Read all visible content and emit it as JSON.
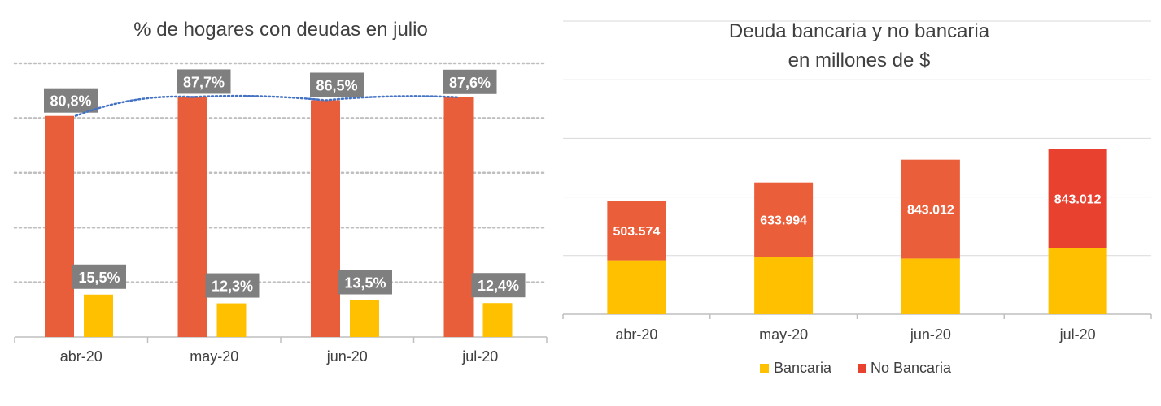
{
  "chart_data": [
    {
      "type": "bar",
      "title": "% de hogares  con deudas  en julio",
      "categories": [
        "abr-20",
        "may-20",
        "jun-20",
        "jul-20"
      ],
      "series": [
        {
          "values": [
            80.8,
            87.7,
            86.5,
            87.6
          ],
          "labels": [
            "80,8%",
            "87,7%",
            "86,5%",
            "87,6%"
          ],
          "color": "#E95E3A"
        },
        {
          "values": [
            15.5,
            12.3,
            13.5,
            12.4
          ],
          "labels": [
            "15,5%",
            "12,3%",
            "13,5%",
            "12,4%"
          ],
          "color": "#FFC000"
        }
      ],
      "trendline": {
        "style": "dotted",
        "color": "#4472C4",
        "series_index": 0
      },
      "ylim": [
        0,
        100
      ],
      "grid": true,
      "gridlines": [
        20,
        40,
        60,
        80,
        100
      ],
      "label_box_color": "#7F7F7F"
    },
    {
      "type": "bar",
      "stacked": true,
      "title": [
        "Deuda  bancaria  y no bancaria",
        "en millones  de $"
      ],
      "categories": [
        "abr-20",
        "may-20",
        "jun-20",
        "jul-20"
      ],
      "series": [
        {
          "name": "Bancaria",
          "values": [
            460000,
            490000,
            475000,
            565000
          ],
          "color": "#FFC000"
        },
        {
          "name": "No Bancaria",
          "values": [
            503574,
            633994,
            843012,
            843012
          ],
          "labels": [
            "503.574",
            "633.994",
            "843.012",
            "843.012"
          ],
          "colors": [
            "#EB5E3A",
            "#EB5E3A",
            "#EB5E3A",
            "#E84130"
          ]
        }
      ],
      "ylim": [
        0,
        2500000
      ],
      "grid": true,
      "legend_position": "bottom"
    }
  ]
}
